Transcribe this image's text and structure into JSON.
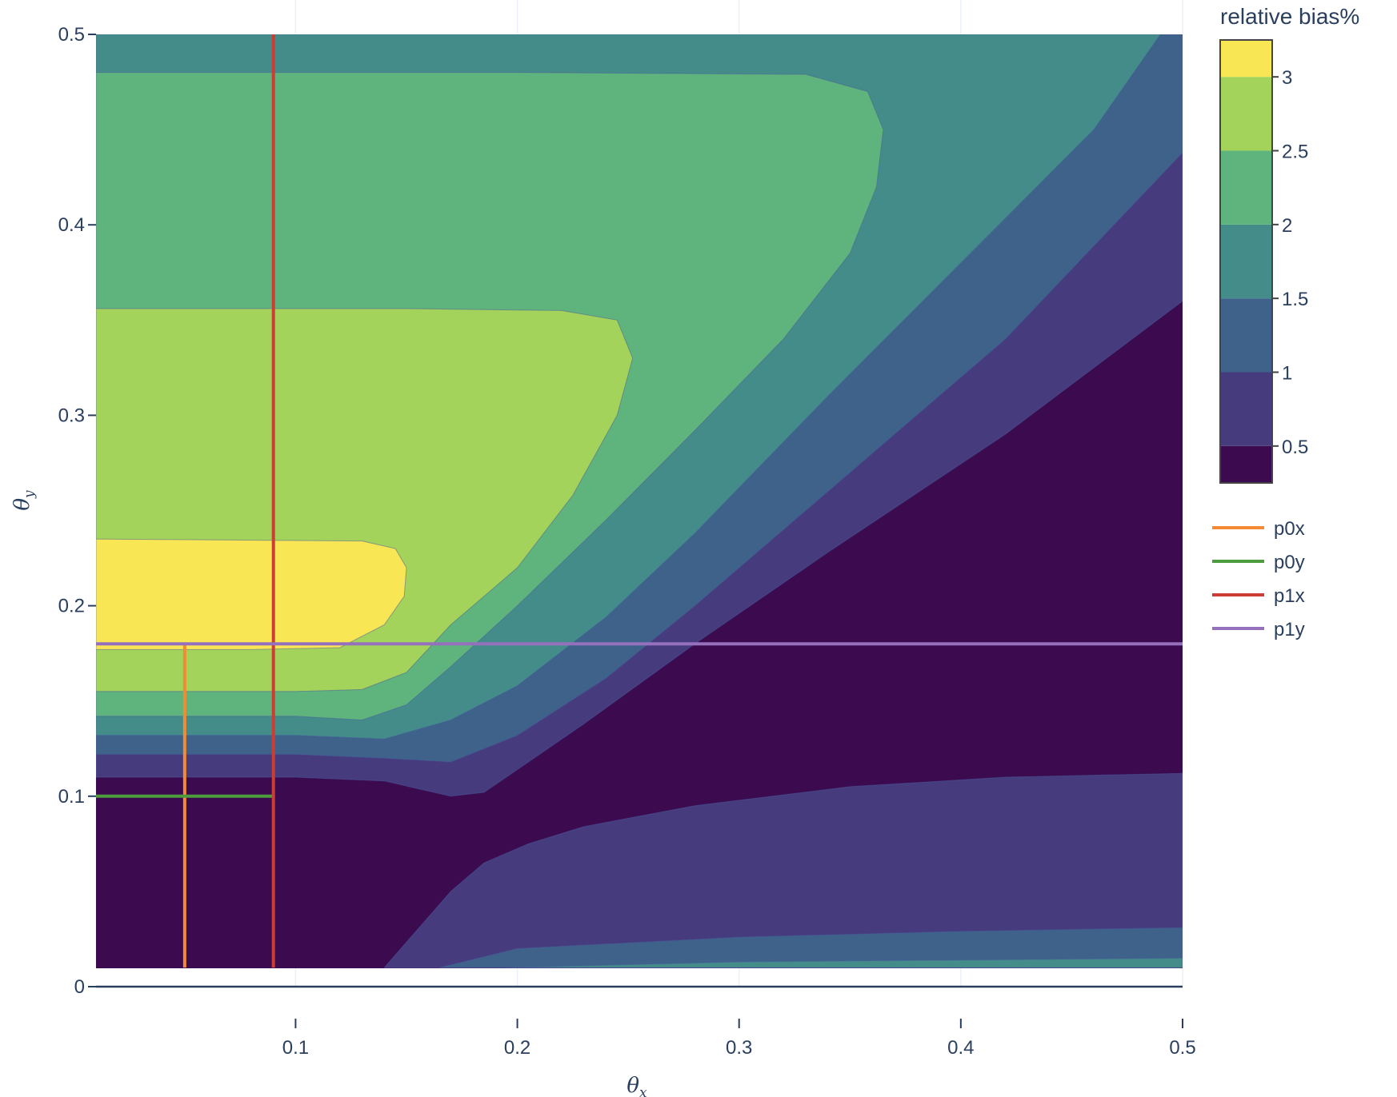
{
  "chart_data": {
    "type": "contour",
    "xlabel": "θ",
    "xlabel_sub": "x",
    "ylabel": "θ",
    "ylabel_sub": "y",
    "xlim": [
      0.01,
      0.5
    ],
    "ylim": [
      0,
      0.5
    ],
    "data_ylim": [
      0.01,
      0.5
    ],
    "xticks": [
      0.1,
      0.2,
      0.3,
      0.4,
      0.5
    ],
    "yticks": [
      0,
      0.1,
      0.2,
      0.3,
      0.4,
      0.5
    ],
    "xtick_labels": [
      "0.1",
      "0.2",
      "0.3",
      "0.4",
      "0.5"
    ],
    "ytick_labels": [
      "0",
      "0.1",
      "0.2",
      "0.3",
      "0.4",
      "0.5"
    ],
    "grid": "vertical",
    "colorbar": {
      "title": "relative bias%",
      "tick_labels": [
        "0.5",
        "1",
        "1.5",
        "2",
        "2.5",
        "3"
      ],
      "tick_values": [
        0.5,
        1,
        1.5,
        2,
        2.5,
        3
      ],
      "range": [
        0.25,
        3.25
      ],
      "levels": [
        {
          "range": [
            0.25,
            0.5
          ],
          "color": "#3c0b4f"
        },
        {
          "range": [
            0.5,
            1.0
          ],
          "color": "#463c7d"
        },
        {
          "range": [
            1.0,
            1.5
          ],
          "color": "#3e6289"
        },
        {
          "range": [
            1.5,
            2.0
          ],
          "color": "#448c8a"
        },
        {
          "range": [
            2.0,
            2.5
          ],
          "color": "#5eb47c"
        },
        {
          "range": [
            2.5,
            3.0
          ],
          "color": "#a3d35b"
        },
        {
          "range": [
            3.0,
            3.25
          ],
          "color": "#f8e655"
        }
      ]
    },
    "contours": [
      {
        "level": 0.5,
        "color": "#463c7d",
        "regions": [
          [
            [
              0.01,
              0.11
            ],
            [
              0.1,
              0.11
            ],
            [
              0.14,
              0.108
            ],
            [
              0.17,
              0.1
            ],
            [
              0.185,
              0.102
            ],
            [
              0.2,
              0.114
            ],
            [
              0.23,
              0.138
            ],
            [
              0.28,
              0.18
            ],
            [
              0.34,
              0.228
            ],
            [
              0.42,
              0.29
            ],
            [
              0.5,
              0.36
            ],
            [
              0.5,
              0.5
            ],
            [
              0.01,
              0.5
            ]
          ],
          [
            [
              0.14,
              0.01
            ],
            [
              0.155,
              0.03
            ],
            [
              0.17,
              0.05
            ],
            [
              0.185,
              0.065
            ],
            [
              0.205,
              0.075
            ],
            [
              0.23,
              0.084
            ],
            [
              0.28,
              0.095
            ],
            [
              0.35,
              0.105
            ],
            [
              0.42,
              0.11
            ],
            [
              0.5,
              0.112
            ],
            [
              0.5,
              0.01
            ]
          ]
        ]
      },
      {
        "level": 1.0,
        "color": "#3e6289",
        "regions": [
          [
            [
              0.01,
              0.122
            ],
            [
              0.1,
              0.122
            ],
            [
              0.14,
              0.12
            ],
            [
              0.17,
              0.118
            ],
            [
              0.2,
              0.132
            ],
            [
              0.24,
              0.162
            ],
            [
              0.28,
              0.2
            ],
            [
              0.34,
              0.26
            ],
            [
              0.42,
              0.34
            ],
            [
              0.5,
              0.438
            ],
            [
              0.5,
              0.5
            ],
            [
              0.01,
              0.5
            ]
          ],
          [
            [
              0.165,
              0.01
            ],
            [
              0.2,
              0.02
            ],
            [
              0.3,
              0.026
            ],
            [
              0.4,
              0.029
            ],
            [
              0.5,
              0.031
            ],
            [
              0.5,
              0.01
            ]
          ]
        ]
      },
      {
        "level": 1.5,
        "color": "#448c8a",
        "regions": [
          [
            [
              0.01,
              0.132
            ],
            [
              0.1,
              0.132
            ],
            [
              0.14,
              0.13
            ],
            [
              0.17,
              0.14
            ],
            [
              0.2,
              0.158
            ],
            [
              0.24,
              0.194
            ],
            [
              0.28,
              0.238
            ],
            [
              0.34,
              0.31
            ],
            [
              0.4,
              0.38
            ],
            [
              0.46,
              0.45
            ],
            [
              0.49,
              0.5
            ],
            [
              0.01,
              0.5
            ]
          ],
          [
            [
              0.195,
              0.01
            ],
            [
              0.3,
              0.013
            ],
            [
              0.4,
              0.014
            ],
            [
              0.5,
              0.015
            ],
            [
              0.5,
              0.01
            ]
          ]
        ]
      },
      {
        "level": 2.0,
        "color": "#5eb47c",
        "regions": [
          [
            [
              0.01,
              0.142
            ],
            [
              0.1,
              0.142
            ],
            [
              0.13,
              0.14
            ],
            [
              0.15,
              0.148
            ],
            [
              0.17,
              0.168
            ],
            [
              0.2,
              0.2
            ],
            [
              0.24,
              0.245
            ],
            [
              0.28,
              0.292
            ],
            [
              0.32,
              0.34
            ],
            [
              0.35,
              0.385
            ],
            [
              0.362,
              0.42
            ],
            [
              0.365,
              0.45
            ],
            [
              0.358,
              0.47
            ],
            [
              0.33,
              0.479
            ],
            [
              0.2,
              0.48
            ],
            [
              0.01,
              0.48
            ]
          ]
        ]
      },
      {
        "level": 2.5,
        "color": "#a3d35b",
        "regions": [
          [
            [
              0.01,
              0.155
            ],
            [
              0.1,
              0.155
            ],
            [
              0.13,
              0.156
            ],
            [
              0.15,
              0.165
            ],
            [
              0.17,
              0.19
            ],
            [
              0.2,
              0.22
            ],
            [
              0.225,
              0.258
            ],
            [
              0.245,
              0.3
            ],
            [
              0.252,
              0.33
            ],
            [
              0.245,
              0.35
            ],
            [
              0.22,
              0.355
            ],
            [
              0.15,
              0.356
            ],
            [
              0.01,
              0.356
            ]
          ]
        ]
      },
      {
        "level": 3.0,
        "color": "#f8e655",
        "regions": [
          [
            [
              0.01,
              0.177
            ],
            [
              0.08,
              0.177
            ],
            [
              0.12,
              0.178
            ],
            [
              0.14,
              0.19
            ],
            [
              0.149,
              0.205
            ],
            [
              0.15,
              0.22
            ],
            [
              0.145,
              0.23
            ],
            [
              0.13,
              0.234
            ],
            [
              0.01,
              0.235
            ]
          ]
        ]
      }
    ],
    "series": [
      {
        "name": "p0x",
        "color": "#f48a33",
        "x": [
          0.05,
          0.05
        ],
        "y": [
          0.01,
          0.18
        ]
      },
      {
        "name": "p0y",
        "color": "#4d9d3f",
        "x": [
          0.01,
          0.09
        ],
        "y": [
          0.1,
          0.1
        ]
      },
      {
        "name": "p1x",
        "color": "#cc3d34",
        "x": [
          0.09,
          0.09
        ],
        "y": [
          0.01,
          0.5
        ]
      },
      {
        "name": "p1y",
        "color": "#9470bd",
        "x": [
          0.01,
          0.5
        ],
        "y": [
          0.18,
          0.18
        ]
      }
    ]
  }
}
